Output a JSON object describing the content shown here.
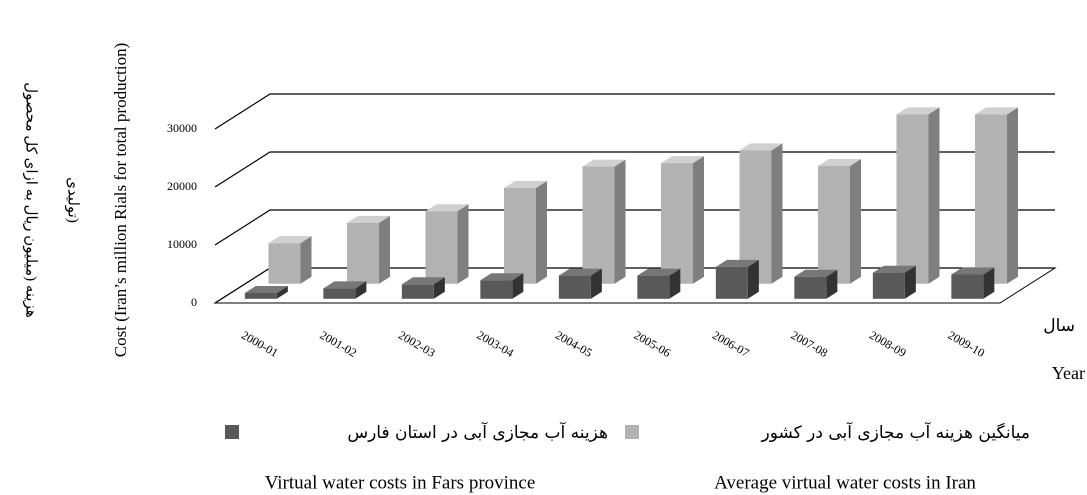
{
  "chart_data": {
    "type": "bar3d",
    "y_label_fa": [
      "هزینه (میلیون ریال به ازای کل محصول",
      "تولیدی)"
    ],
    "y_label": "Cost (Iran’s million Rials for total production)",
    "x_label_fa": "سال",
    "x_label": "Year",
    "categories": [
      "2000-01",
      "2001-02",
      "2002-03",
      "2003-04",
      "2004-05",
      "2005-06",
      "2006-07",
      "2007-08",
      "2008-09",
      "2009-10"
    ],
    "series": [
      {
        "name": "هزینه آب مجازی آبی در استان فارس",
        "name_en": "Virtual water costs in Fars province",
        "color": "#595959",
        "values": [
          1000,
          1800,
          2500,
          3200,
          4000,
          4000,
          5500,
          3800,
          4500,
          4200
        ]
      },
      {
        "name": "میانگین هزینه آب مجازی آبی در کشور",
        "name_en": "Average virtual water costs in Iran",
        "color": "#b2b2b2",
        "values": [
          7000,
          10500,
          12500,
          16500,
          20200,
          20800,
          23000,
          20300,
          29200,
          29200
        ]
      }
    ],
    "ylim": [
      0,
      30000
    ],
    "yticks": [
      0,
      10000,
      20000,
      30000
    ],
    "grid": true
  }
}
